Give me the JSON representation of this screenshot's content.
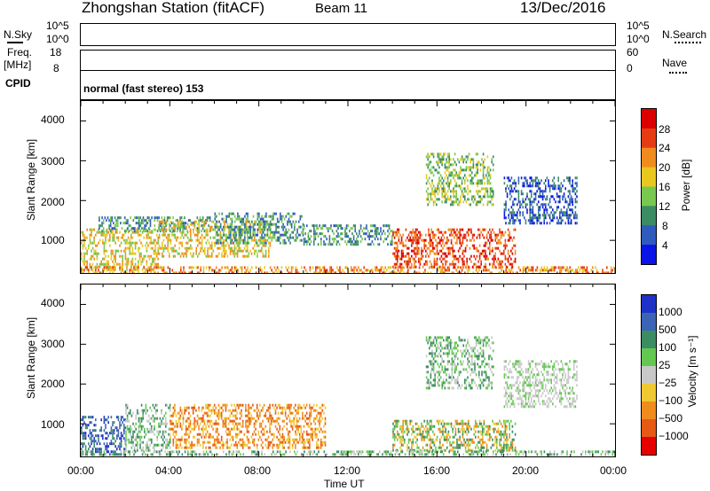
{
  "header": {
    "station": "Zhongshan Station (fitACF)",
    "beam": "Beam 11",
    "date": "13/Dec/2016"
  },
  "strip_nsky": {
    "left_label": "N.Sky",
    "left_ticks": [
      "10^5",
      "10^0"
    ],
    "right_label": "N.Search",
    "right_ticks": [
      "10^5",
      "10^0"
    ]
  },
  "strip_freq": {
    "left_label_line1": "Freq.",
    "left_label_line2": "[MHz]",
    "left_ticks": [
      "18",
      "8"
    ],
    "right_label": "Nave",
    "right_ticks": [
      "60",
      "0"
    ]
  },
  "strip_cpid": {
    "label": "CPID",
    "text": "normal (fast stereo) 153"
  },
  "chart_data": [
    {
      "type": "heatmap",
      "panel": "power",
      "xlabel": "",
      "ylabel": "Slant Range [km]",
      "yticks": [
        "4000",
        "3000",
        "2000",
        "1000"
      ],
      "ylim": [
        180,
        4500
      ],
      "xlim_hours": [
        0,
        24
      ],
      "colorbar_label": "Power [dB]",
      "colorbar_ticks": [
        "28",
        "24",
        "20",
        "16",
        "12",
        "8",
        "4"
      ],
      "colors": [
        "#0a14e6",
        "#2f5bbf",
        "#3c8c64",
        "#78c850",
        "#e8c81e",
        "#f08c1e",
        "#e63c14",
        "#dc0000"
      ],
      "regions": [
        {
          "t0": 0.0,
          "t1": 3.5,
          "r0": 250,
          "r1": 1300,
          "p": 16
        },
        {
          "t0": 0.8,
          "t1": 5.8,
          "r0": 1250,
          "r1": 1600,
          "p": 6
        },
        {
          "t0": 3.5,
          "t1": 8.5,
          "r0": 600,
          "r1": 1500,
          "p": 14
        },
        {
          "t0": 6.0,
          "t1": 10.0,
          "r0": 900,
          "r1": 1700,
          "p": 8
        },
        {
          "t0": 0.0,
          "t1": 24.0,
          "r0": 200,
          "r1": 350,
          "p": 20
        },
        {
          "t0": 14.0,
          "t1": 19.5,
          "r0": 350,
          "r1": 1300,
          "p": 22
        },
        {
          "t0": 15.5,
          "t1": 18.5,
          "r0": 1900,
          "r1": 3200,
          "p": 10
        },
        {
          "t0": 19.0,
          "t1": 22.3,
          "r0": 1400,
          "r1": 2600,
          "p": 5
        },
        {
          "t0": 10.0,
          "t1": 14.0,
          "r0": 900,
          "r1": 1400,
          "p": 6
        }
      ]
    },
    {
      "type": "heatmap",
      "panel": "velocity",
      "xlabel": "Time UT",
      "ylabel": "Slant Range [km]",
      "yticks": [
        "4000",
        "3000",
        "2000",
        "1000"
      ],
      "ylim": [
        180,
        4500
      ],
      "xlim_hours": [
        0,
        24
      ],
      "xticks": [
        "00:00",
        "04:00",
        "08:00",
        "12:00",
        "16:00",
        "20:00",
        "00:00"
      ],
      "colorbar_label": "Velocity [m s⁻¹]",
      "colorbar_ticks": [
        "1000",
        "500",
        "100",
        "25",
        "−25",
        "−100",
        "−500",
        "−1000"
      ],
      "colors": [
        "#1e32c8",
        "#3c64b4",
        "#3c8c64",
        "#64c850",
        "#c8c8c8",
        "#f0c832",
        "#f08c1e",
        "#e65a14",
        "#e60000"
      ],
      "regions": [
        {
          "t0": 0.0,
          "t1": 2.0,
          "r0": 250,
          "r1": 1200,
          "v": "toward"
        },
        {
          "t0": 2.0,
          "t1": 4.0,
          "r0": 300,
          "r1": 1500,
          "v": "slow"
        },
        {
          "t0": 4.0,
          "t1": 11.0,
          "r0": 400,
          "r1": 1500,
          "v": "away"
        },
        {
          "t0": 14.0,
          "t1": 19.5,
          "r0": 300,
          "r1": 1100,
          "v": "mixed"
        },
        {
          "t0": 15.5,
          "t1": 18.5,
          "r0": 1900,
          "r1": 3200,
          "v": "slow"
        },
        {
          "t0": 19.0,
          "t1": 22.3,
          "r0": 1400,
          "r1": 2600,
          "v": "zero"
        },
        {
          "t0": 0.0,
          "t1": 24.0,
          "r0": 200,
          "r1": 330,
          "v": "slow"
        }
      ]
    }
  ]
}
